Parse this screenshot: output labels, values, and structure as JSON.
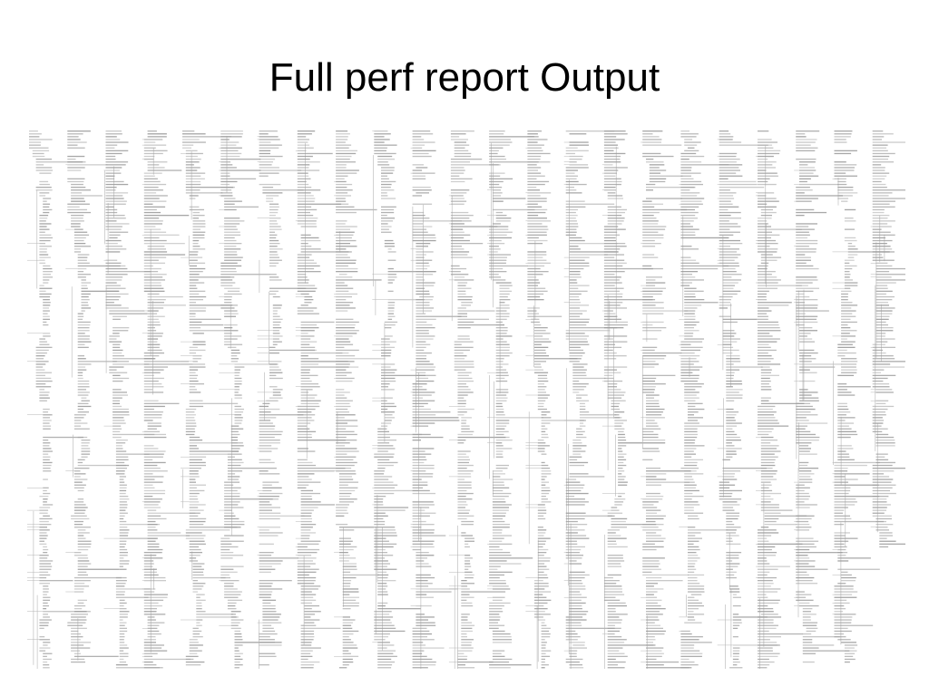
{
  "slide": {
    "title": "Full perf report Output"
  },
  "report_image": {
    "description_icon": "dense-callgraph-text-image",
    "ink_color": "#9a9a9a",
    "line_color": "#b5b5b5"
  }
}
